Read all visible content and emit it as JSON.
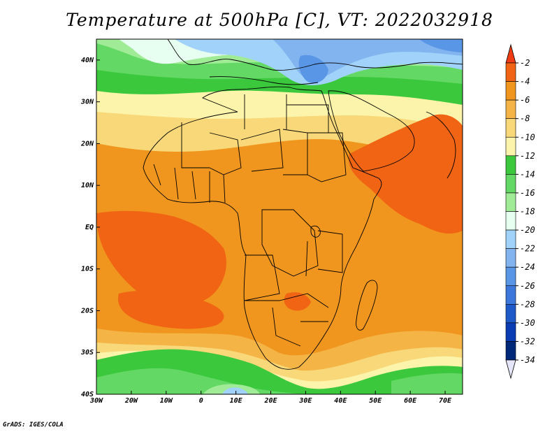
{
  "title": "Temperature at 500hPa [C], VT: 2022032918",
  "credit": "GrADS: IGES/COLA",
  "map": {
    "field": "temperature",
    "level": "500hPa",
    "units": "C",
    "lon_range": [
      -30,
      75
    ],
    "lat_range": [
      -40,
      45
    ],
    "lon_ticks": [
      "30W",
      "20W",
      "10W",
      "0",
      "10E",
      "20E",
      "30E",
      "40E",
      "50E",
      "60E",
      "70E"
    ],
    "lat_ticks": [
      "40N",
      "30N",
      "20N",
      "10N",
      "EQ",
      "10S",
      "20S",
      "30S",
      "40S"
    ]
  },
  "colorbar": {
    "labels": [
      "-2",
      "-4",
      "-6",
      "-8",
      "-10",
      "-12",
      "-14",
      "-16",
      "-18",
      "-20",
      "-22",
      "-24",
      "-26",
      "-28",
      "-30",
      "-32",
      "-34"
    ],
    "colors": [
      "#f03c14",
      "#f06414",
      "#f0961e",
      "#f4b446",
      "#f8d878",
      "#fcf4aa",
      "#3cc83c",
      "#64d864",
      "#a0ec96",
      "#e6fff0",
      "#a0d2fa",
      "#82b4f0",
      "#5a96e6",
      "#3c78dc",
      "#1e5ac8",
      "#0a3cb4",
      "#002878",
      "#e6e6fa"
    ]
  }
}
